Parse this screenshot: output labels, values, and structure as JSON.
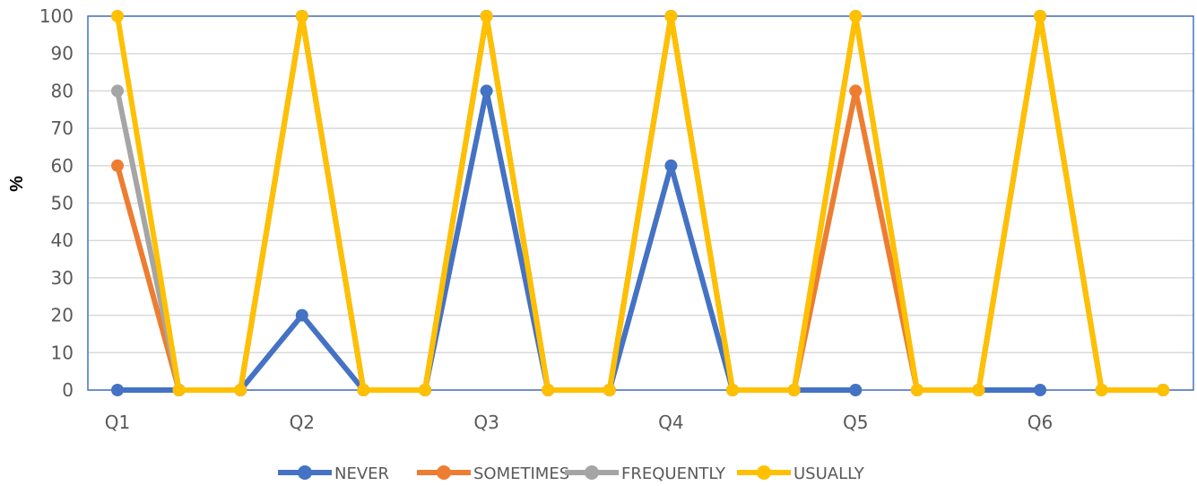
{
  "chart_data": {
    "type": "line",
    "title": "",
    "xlabel": "",
    "ylabel": "%",
    "ylim": [
      0,
      100
    ],
    "yticks": [
      0,
      10,
      20,
      30,
      40,
      50,
      60,
      70,
      80,
      90,
      100
    ],
    "x_tick_labels": [
      "Q1",
      "Q2",
      "Q3",
      "Q4",
      "Q5",
      "Q6"
    ],
    "x_tick_positions": [
      0,
      3,
      6,
      9,
      12,
      15
    ],
    "num_points": 18,
    "grid": true,
    "legend_position": "bottom",
    "series": [
      {
        "name": "NEVER",
        "color": "#4472C4",
        "values": [
          0,
          0,
          0,
          20,
          0,
          0,
          80,
          0,
          0,
          60,
          0,
          0,
          0,
          null,
          0,
          0,
          null,
          null
        ]
      },
      {
        "name": "SOMETIMES",
        "color": "#ED7D31",
        "values": [
          60,
          0,
          0,
          100,
          0,
          0,
          100,
          0,
          0,
          100,
          0,
          0,
          80,
          0,
          0,
          100,
          0,
          0
        ]
      },
      {
        "name": "FREQUENTLY",
        "color": "#A5A5A5",
        "values": [
          80,
          0,
          0,
          100,
          0,
          0,
          100,
          0,
          0,
          100,
          0,
          0,
          100,
          0,
          0,
          100,
          0,
          0
        ]
      },
      {
        "name": "USUALLY",
        "color": "#FFC000",
        "values": [
          100,
          0,
          0,
          100,
          0,
          0,
          100,
          0,
          0,
          100,
          0,
          0,
          100,
          0,
          0,
          100,
          0,
          0
        ]
      }
    ]
  }
}
